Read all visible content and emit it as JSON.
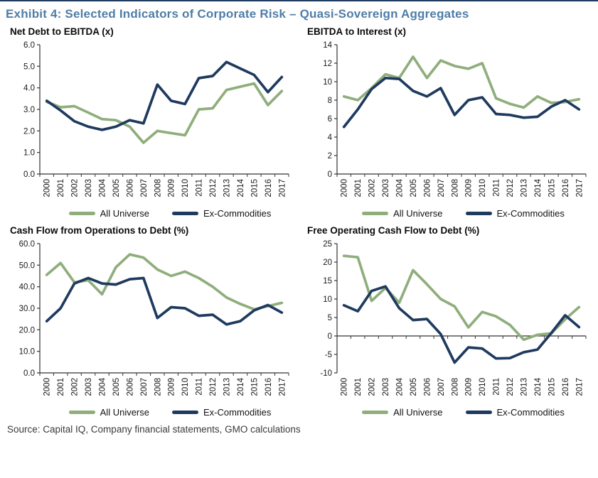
{
  "page": {
    "title": "Exhibit 4: Selected Indicators of Corporate Risk – Quasi-Sovereign Aggregates",
    "source": "Source: Capital IQ, Company financial statements, GMO calculations"
  },
  "colors": {
    "all_universe": "#8FAE7C",
    "ex_commodities": "#1F3A5F",
    "title_blue": "#4E7DA7",
    "axis": "#333333",
    "text": "#1A1A1A",
    "top_rule": "#1F3A5F"
  },
  "chart_data": [
    {
      "id": "net-debt-to-ebitda",
      "type": "line",
      "title": "Net Debt to EBITDA (x)",
      "ylim": [
        0,
        6
      ],
      "ytick_step": 1,
      "ytick_decimals": 1,
      "grid": false,
      "legend_position": "bottom",
      "categories": [
        2000,
        2001,
        2002,
        2003,
        2004,
        2005,
        2006,
        2007,
        2008,
        2009,
        2010,
        2011,
        2012,
        2013,
        2014,
        2015,
        2016,
        2017
      ],
      "series": [
        {
          "name": "All Universe",
          "color_key": "all_universe",
          "values": [
            3.35,
            3.1,
            3.15,
            2.85,
            2.55,
            2.5,
            2.2,
            1.45,
            2.0,
            1.9,
            1.8,
            3.0,
            3.05,
            3.9,
            4.05,
            4.2,
            3.2,
            3.85
          ]
        },
        {
          "name": "Ex-Commodities",
          "color_key": "ex_commodities",
          "values": [
            3.4,
            2.95,
            2.45,
            2.2,
            2.05,
            2.2,
            2.5,
            2.35,
            4.15,
            3.4,
            3.25,
            4.45,
            4.55,
            5.2,
            4.9,
            4.6,
            3.8,
            4.5
          ]
        }
      ]
    },
    {
      "id": "ebitda-to-interest",
      "type": "line",
      "title": "EBITDA to Interest (x)",
      "ylim": [
        0,
        14
      ],
      "ytick_step": 2,
      "ytick_decimals": 0,
      "grid": false,
      "legend_position": "bottom",
      "categories": [
        2000,
        2001,
        2002,
        2003,
        2004,
        2005,
        2006,
        2007,
        2008,
        2009,
        2010,
        2011,
        2012,
        2013,
        2014,
        2015,
        2016,
        2017
      ],
      "series": [
        {
          "name": "All Universe",
          "color_key": "all_universe",
          "values": [
            8.4,
            8.0,
            9.3,
            10.8,
            10.4,
            12.7,
            10.4,
            12.3,
            11.7,
            11.4,
            12.0,
            8.2,
            7.6,
            7.2,
            8.4,
            7.7,
            7.8,
            8.1
          ]
        },
        {
          "name": "Ex-Commodities",
          "color_key": "ex_commodities",
          "values": [
            5.1,
            7.0,
            9.2,
            10.4,
            10.3,
            9.0,
            8.4,
            9.3,
            6.4,
            8.0,
            8.3,
            6.5,
            6.4,
            6.1,
            6.2,
            7.3,
            8.0,
            7.0
          ]
        }
      ]
    },
    {
      "id": "cash-flow-from-operations-to-debt",
      "type": "line",
      "title": "Cash Flow from Operations to Debt (%)",
      "ylim": [
        0,
        60
      ],
      "ytick_step": 10,
      "ytick_decimals": 1,
      "grid": false,
      "legend_position": "bottom",
      "categories": [
        2000,
        2001,
        2002,
        2003,
        2004,
        2005,
        2006,
        2007,
        2008,
        2009,
        2010,
        2011,
        2012,
        2013,
        2014,
        2015,
        2016,
        2017
      ],
      "series": [
        {
          "name": "All Universe",
          "color_key": "all_universe",
          "values": [
            45.5,
            51.0,
            42.0,
            43.0,
            36.5,
            49.0,
            55.0,
            53.5,
            48.0,
            45.0,
            47.0,
            44.0,
            40.0,
            35.0,
            32.0,
            29.5,
            31.0,
            32.5
          ]
        },
        {
          "name": "Ex-Commodities",
          "color_key": "ex_commodities",
          "values": [
            24.0,
            30.0,
            41.5,
            44.0,
            41.5,
            41.0,
            43.5,
            44.0,
            25.5,
            30.5,
            30.0,
            26.5,
            27.0,
            22.5,
            24.0,
            29.0,
            31.5,
            28.0
          ]
        }
      ]
    },
    {
      "id": "free-operating-cash-flow-to-debt",
      "type": "line",
      "title": "Free Operating Cash Flow to Debt (%)",
      "ylim": [
        -10,
        25
      ],
      "ytick_step": 5,
      "ytick_decimals": 0,
      "grid": false,
      "legend_position": "bottom",
      "categories": [
        2000,
        2001,
        2002,
        2003,
        2004,
        2005,
        2006,
        2007,
        2008,
        2009,
        2010,
        2011,
        2012,
        2013,
        2014,
        2015,
        2016,
        2017
      ],
      "series": [
        {
          "name": "All Universe",
          "color_key": "all_universe",
          "values": [
            21.7,
            21.3,
            9.5,
            13.0,
            9.0,
            17.8,
            14.0,
            10.0,
            8.0,
            2.3,
            6.5,
            5.3,
            3.0,
            -1.0,
            0.3,
            0.7,
            4.5,
            7.8
          ]
        },
        {
          "name": "Ex-Commodities",
          "color_key": "ex_commodities",
          "values": [
            8.3,
            6.7,
            12.2,
            13.4,
            7.5,
            4.3,
            4.6,
            0.5,
            -7.2,
            -3.1,
            -3.4,
            -6.1,
            -6.0,
            -4.4,
            -3.7,
            0.8,
            5.6,
            2.4
          ]
        }
      ]
    }
  ]
}
